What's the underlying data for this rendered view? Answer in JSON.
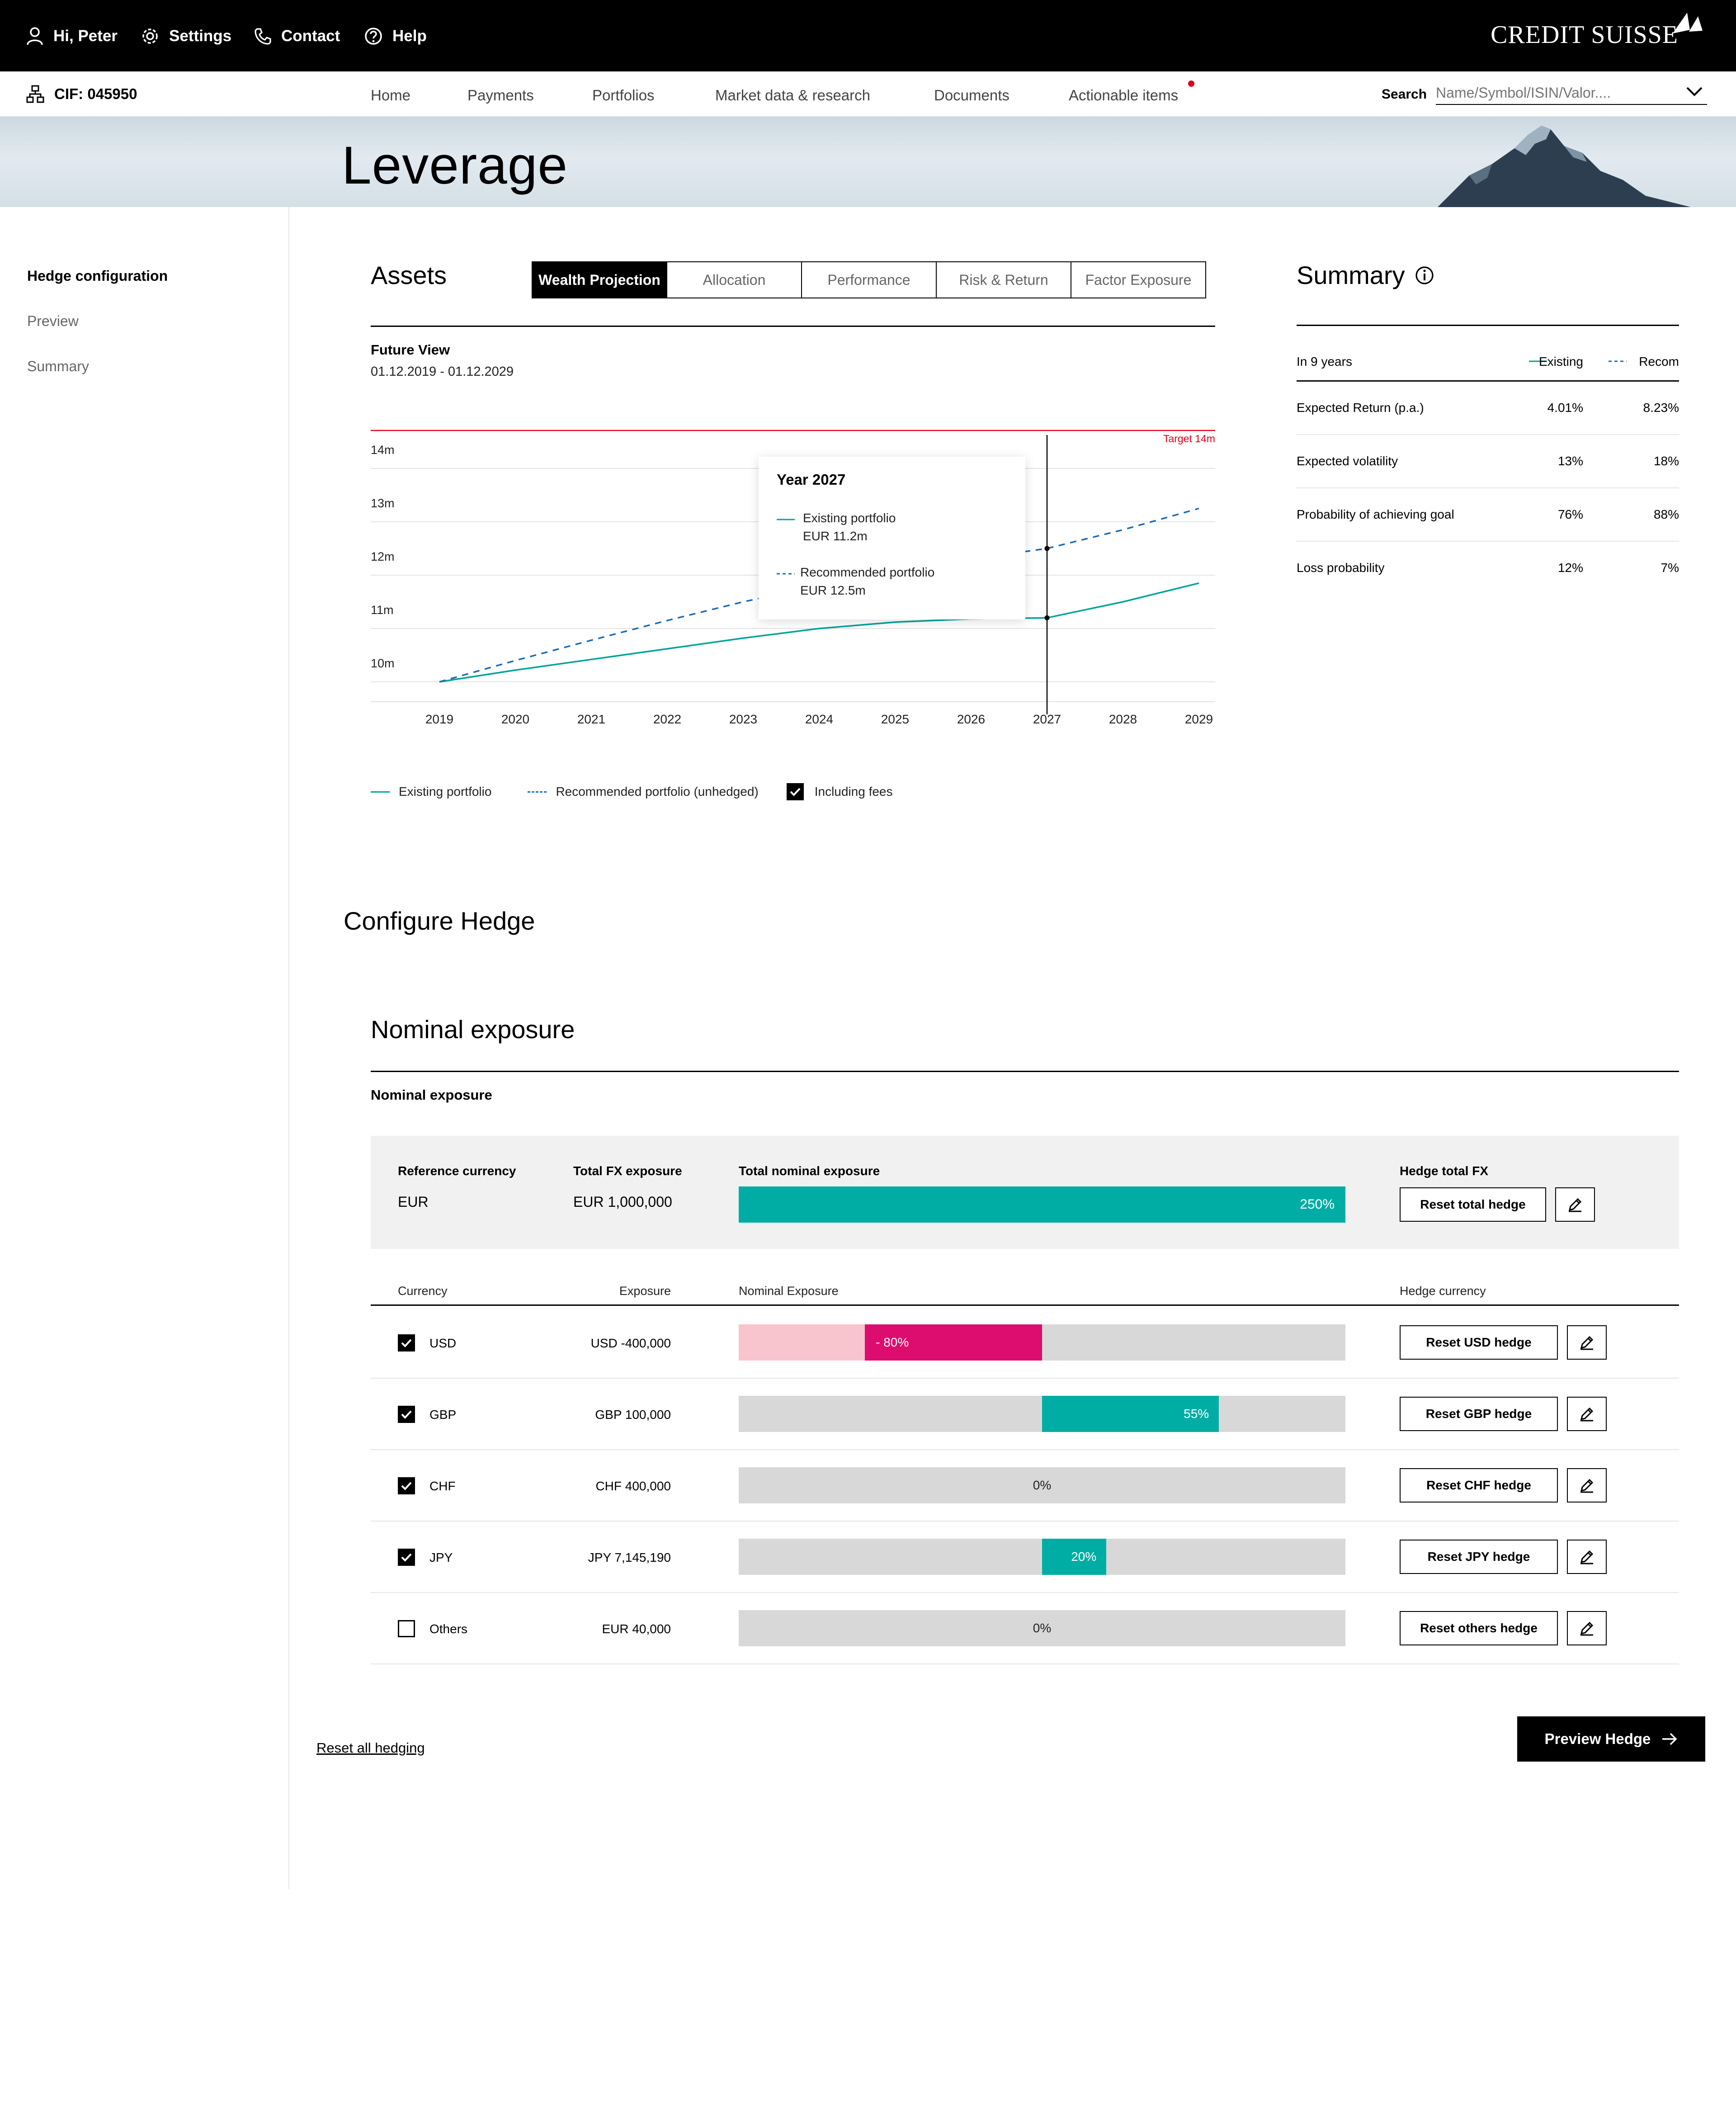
{
  "topbar": {
    "greeting": "Hi, Peter",
    "settings": "Settings",
    "contact": "Contact",
    "help": "Help",
    "brand": "CREDIT SUISSE"
  },
  "navbar": {
    "cif": "CIF: 045950",
    "items": [
      "Home",
      "Payments",
      "Portfolios",
      "Market data & research",
      "Documents",
      "Actionable items"
    ],
    "search_label": "Search",
    "search_placeholder": "Name/Symbol/ISIN/Valor...."
  },
  "page": {
    "title": "Leverage"
  },
  "sidebar": {
    "items": [
      "Hedge configuration",
      "Preview",
      "Summary"
    ]
  },
  "assets": {
    "title": "Assets",
    "tabs": [
      "Wealth Projection",
      "Allocation",
      "Performance",
      "Risk & Return",
      "Factor Exposure"
    ],
    "future_view": "Future View",
    "date_range": "01.12.2019 - 01.12.2029",
    "legend": {
      "existing": "Existing portfolio",
      "recommended": "Recommended portfolio (unhedged)",
      "fees": "Including fees"
    }
  },
  "chart_data": {
    "type": "line",
    "x": [
      2019,
      2020,
      2021,
      2022,
      2023,
      2024,
      2025,
      2026,
      2027,
      2028,
      2029
    ],
    "yticks": [
      "10m",
      "11m",
      "12m",
      "13m",
      "14m"
    ],
    "ylim": [
      9.6,
      14.45
    ],
    "series": [
      {
        "name": "Existing portfolio",
        "color": "#00a49a",
        "style": "solid",
        "values": [
          10.0,
          10.22,
          10.42,
          10.62,
          10.82,
          11.0,
          11.12,
          11.18,
          11.2,
          11.5,
          11.85
        ]
      },
      {
        "name": "Recommended portfolio (unhedged)",
        "color": "#1a6cb8",
        "style": "dashed",
        "values": [
          10.0,
          10.4,
          10.78,
          11.15,
          11.5,
          11.8,
          12.05,
          12.3,
          12.5,
          12.85,
          13.25
        ]
      }
    ],
    "target": {
      "value": 14.45,
      "label": "Target 14m",
      "color": "#e2001a"
    },
    "marker_x": 2027,
    "tooltip": {
      "title": "Year 2027",
      "existing_label": "Existing portfolio",
      "existing_value": "EUR 11.2m",
      "recommended_label": "Recommended portfolio",
      "recommended_value": "EUR 12.5m"
    }
  },
  "summary": {
    "title": "Summary",
    "header": {
      "period": "In 9 years",
      "col1": "Existing",
      "col2": "Recom"
    },
    "rows": [
      {
        "label": "Expected Return (p.a.)",
        "existing": "4.01%",
        "recommended": "8.23%"
      },
      {
        "label": "Expected volatility",
        "existing": "13%",
        "recommended": "18%"
      },
      {
        "label": "Probability of achieving goal",
        "existing": "76%",
        "recommended": "88%"
      },
      {
        "label": "Loss probability",
        "existing": "12%",
        "recommended": "7%"
      }
    ]
  },
  "configure": {
    "title": "Configure Hedge",
    "nominal_title": "Nominal exposure",
    "nominal_subtitle": "Nominal exposure",
    "reference": {
      "ref_currency_label": "Reference currency",
      "ref_currency": "EUR",
      "total_fx_label": "Total FX exposure",
      "total_fx": "EUR 1,000,000",
      "total_nominal_label": "Total nominal exposure",
      "total_nominal": "250%",
      "hedge_total_label": "Hedge total FX",
      "reset_total": "Reset total hedge"
    },
    "table_headers": {
      "currency": "Currency",
      "exposure": "Exposure",
      "nominal": "Nominal Exposure",
      "hedge": "Hedge currency"
    },
    "rows": [
      {
        "currency": "USD",
        "checked": true,
        "exposure": "USD -400,000",
        "pct_label": "- 80%",
        "pct": -80,
        "reset": "Reset USD hedge"
      },
      {
        "currency": "GBP",
        "checked": true,
        "exposure": "GBP 100,000",
        "pct_label": "55%",
        "pct": 55,
        "reset": "Reset GBP hedge"
      },
      {
        "currency": "CHF",
        "checked": true,
        "exposure": "CHF 400,000",
        "pct_label": "0%",
        "pct": 0,
        "reset": "Reset CHF hedge"
      },
      {
        "currency": "JPY",
        "checked": true,
        "exposure": "JPY 7,145,190",
        "pct_label": "20%",
        "pct": 20,
        "reset": "Reset JPY hedge"
      },
      {
        "currency": "Others",
        "checked": false,
        "exposure": "EUR 40,000",
        "pct_label": "0%",
        "pct": 0,
        "reset": "Reset others hedge"
      }
    ],
    "reset_all": "Reset all hedging",
    "preview": "Preview Hedge"
  },
  "colors": {
    "accent": "#00ada4",
    "negative": "#dc0d6e",
    "negative_light": "#f8c4ce",
    "bar_bg": "#d8d8d8",
    "target": "#e2001a"
  }
}
